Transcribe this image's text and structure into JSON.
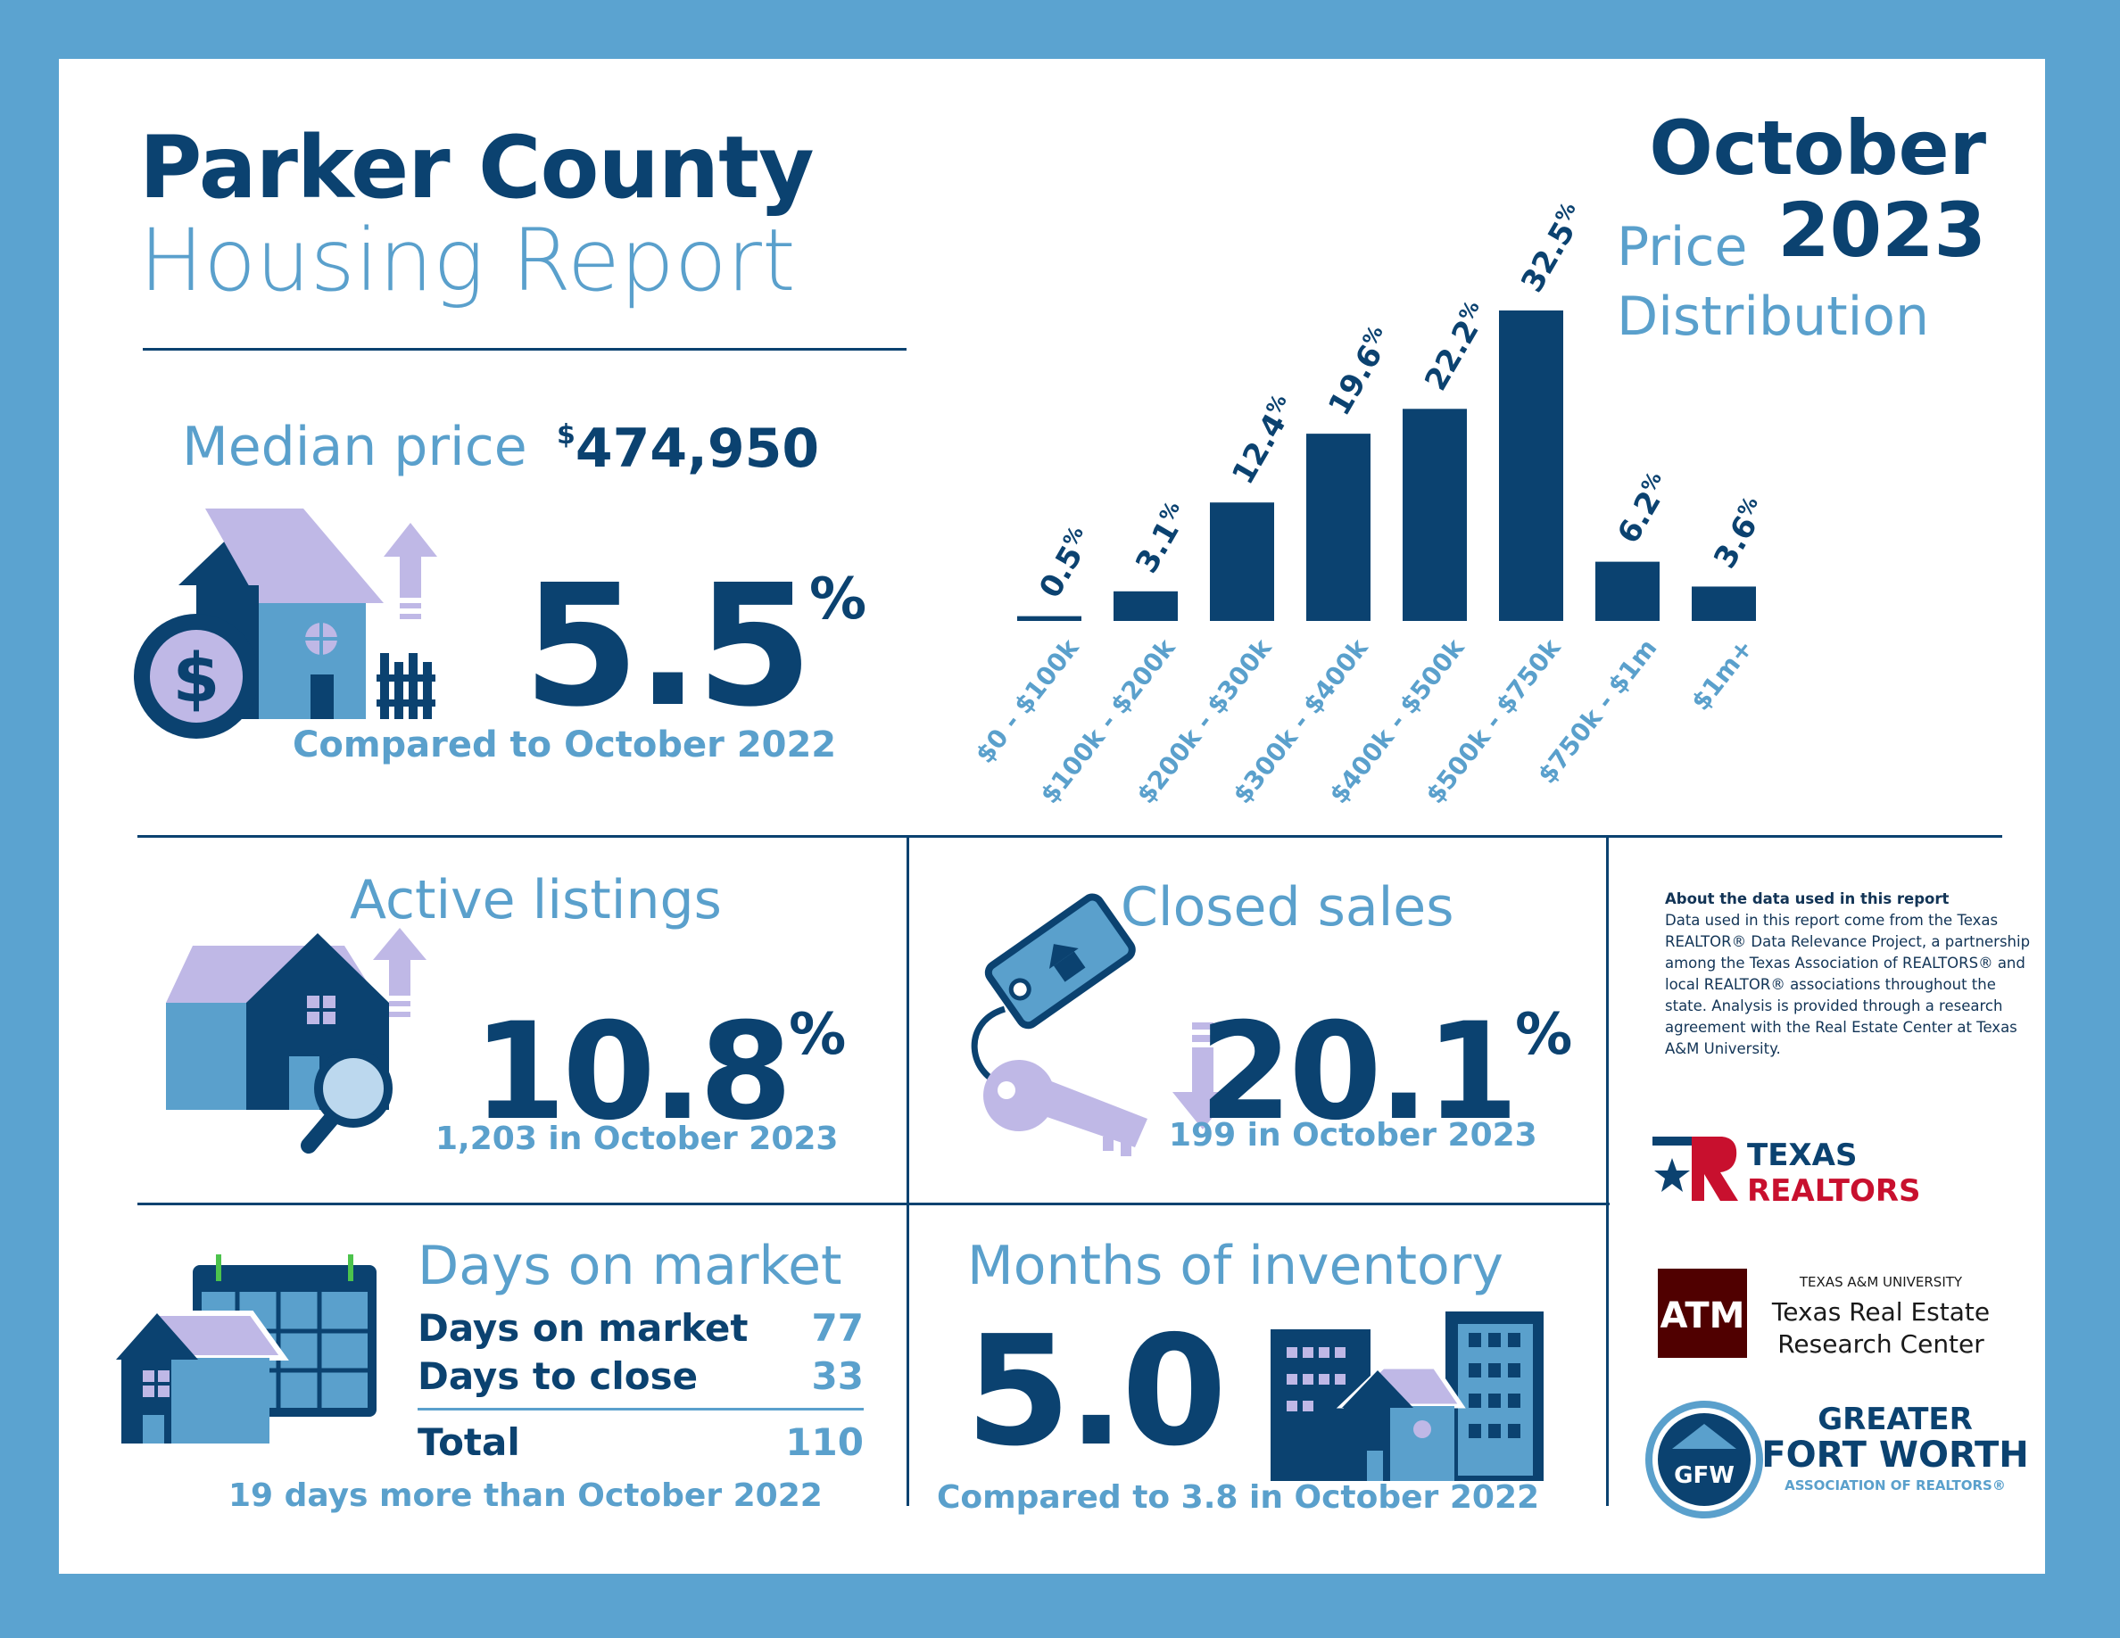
{
  "header": {
    "title_line1": "Parker County",
    "title_line2": "Housing Report",
    "month": "October",
    "year": "2023"
  },
  "median": {
    "label": "Median price",
    "currency": "$",
    "value": "474,950",
    "change": "5.5",
    "percent_sign": "%",
    "direction": "up",
    "compare": "Compared to October 2022"
  },
  "chart_data": {
    "type": "bar",
    "title_line1": "Price",
    "title_line2": "Distribution",
    "categories": [
      "$0 - $100k",
      "$100k - $200k",
      "$200k - $300k",
      "$300k - $400k",
      "$400k - $500k",
      "$500k - $750k",
      "$750k - $1m",
      "$1m+"
    ],
    "values": [
      0.5,
      3.1,
      12.4,
      19.6,
      22.2,
      32.5,
      6.2,
      3.6
    ],
    "value_labels": [
      "0.5",
      "3.1",
      "12.4",
      "19.6",
      "22.2",
      "32.5",
      "6.2",
      "3.6"
    ],
    "unit": "%",
    "ylim": [
      0,
      32.5
    ],
    "grid": false,
    "bar_color": "#0b4270"
  },
  "active_listings": {
    "title": "Active listings",
    "change": "10.8",
    "percent_sign": "%",
    "direction": "up",
    "sub": "1,203 in October 2023"
  },
  "closed_sales": {
    "title": "Closed sales",
    "change": "20.1",
    "percent_sign": "%",
    "direction": "down",
    "sub": "199 in October 2023"
  },
  "days_on_market": {
    "title": "Days on market",
    "rows": [
      {
        "label": "Days on market",
        "value": "77"
      },
      {
        "label": "Days to close",
        "value": "33"
      }
    ],
    "total_label": "Total",
    "total_value": "110",
    "sub": "19 days more than October 2022"
  },
  "months_inventory": {
    "title": "Months of inventory",
    "value": "5.0",
    "sub": "Compared to 3.8 in October 2022"
  },
  "about": {
    "heading": "About the data used in this report",
    "body": "Data used in this report come from the Texas REALTOR® Data Relevance Project, a partnership among the Texas Association of REALTORS® and local REALTOR® associations throughout the state. Analysis is provided through a research agreement with the Real Estate Center at Texas A&M University."
  },
  "logos": {
    "texas_realtors_line1": "TEXAS",
    "texas_realtors_line2": "REALTORS",
    "tamu_small": "TEXAS A&M UNIVERSITY",
    "tamu_line1": "Texas Real Estate",
    "tamu_line2": "Research Center",
    "tamu_mark": "ATM",
    "gfw_line1": "GREATER",
    "gfw_line2": "FORT WORTH",
    "gfw_line3": "ASSOCIATION OF REALTORS®",
    "gfw_mark": "GFW"
  },
  "colors": {
    "navy": "#0b4270",
    "light_blue": "#5aa0cc",
    "lavender": "#bfb8e6",
    "frame": "#5ba3d0",
    "texas_red": "#c8102e",
    "tamu_maroon": "#500000"
  }
}
